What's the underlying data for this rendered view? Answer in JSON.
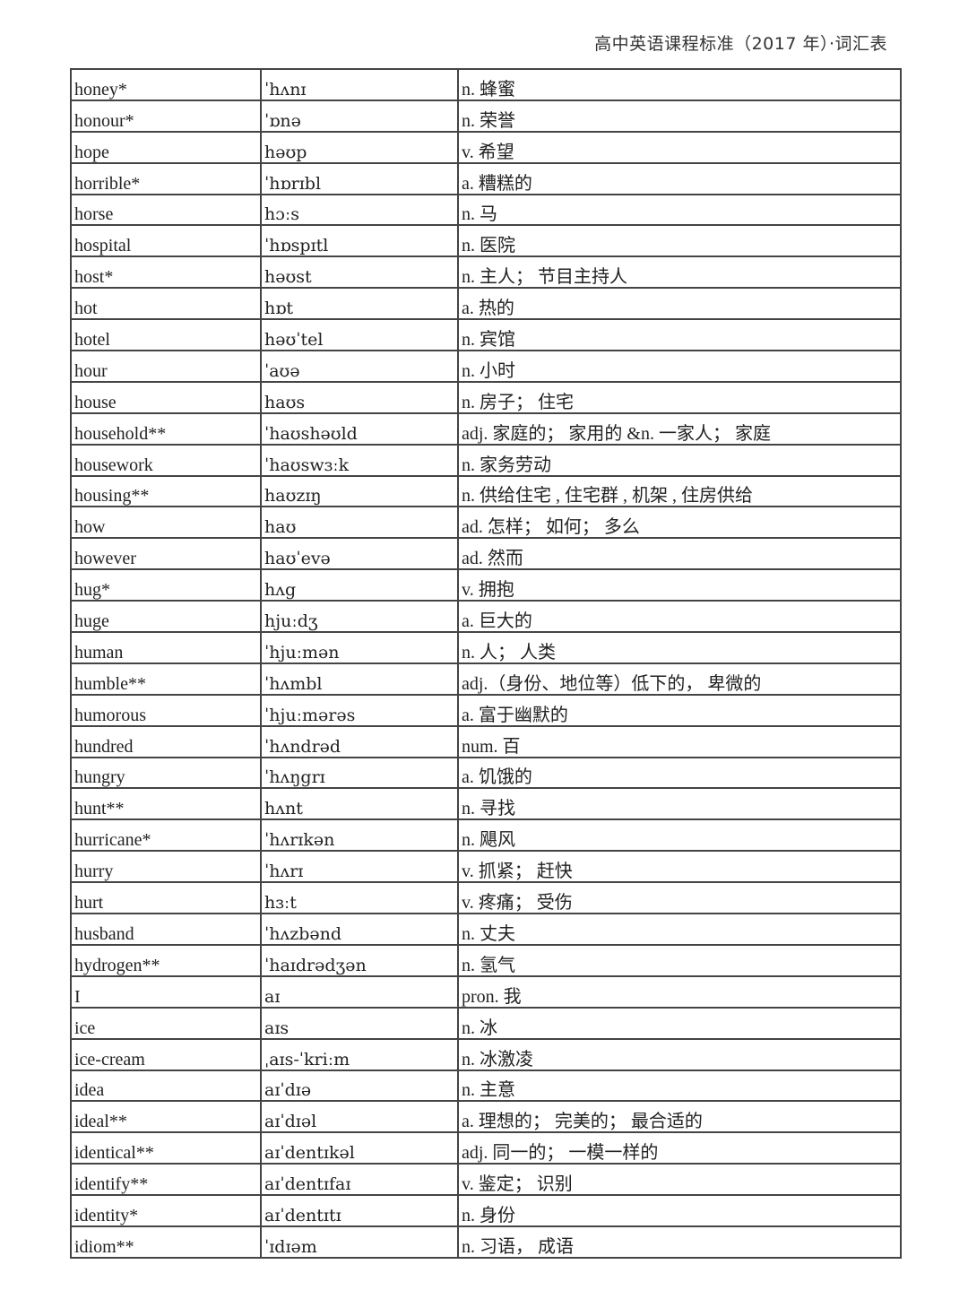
{
  "header": {
    "title": "高中英语课程标准（2017 年）·词汇表"
  },
  "rows": [
    {
      "word": "honey*",
      "phonetic": "ˈhʌnɪ",
      "meaning": "n. 蜂蜜"
    },
    {
      "word": "honour*",
      "phonetic": "ˈɒnə",
      "meaning": "n. 荣誉"
    },
    {
      "word": "hope",
      "phonetic": "həʊp",
      "meaning": "v. 希望"
    },
    {
      "word": "horrible*",
      "phonetic": "ˈhɒrɪbl",
      "meaning": "a. 糟糕的"
    },
    {
      "word": "horse",
      "phonetic": "hɔːs",
      "meaning": "n. 马"
    },
    {
      "word": "hospital",
      "phonetic": "ˈhɒspɪtl",
      "meaning": "n. 医院"
    },
    {
      "word": "host*",
      "phonetic": "həʊst",
      "meaning": "n. 主人；  节目主持人"
    },
    {
      "word": "hot",
      "phonetic": "hɒt",
      "meaning": "a. 热的"
    },
    {
      "word": "hotel",
      "phonetic": "həʊˈtel",
      "meaning": "n. 宾馆"
    },
    {
      "word": "hour",
      "phonetic": "ˈaʊə",
      "meaning": "n. 小时"
    },
    {
      "word": "house",
      "phonetic": "haʊs",
      "meaning": "n. 房子；  住宅"
    },
    {
      "word": "household**",
      "phonetic": "ˈhaʊshəʊld",
      "meaning": "adj. 家庭的；  家用的 &n. 一家人；  家庭"
    },
    {
      "word": "housework",
      "phonetic": "ˈhaʊswɜːk",
      "meaning": "n. 家务劳动"
    },
    {
      "word": "housing**",
      "phonetic": "haʊzɪŋ",
      "meaning": "n. 供给住宅 , 住宅群 , 机架 , 住房供给"
    },
    {
      "word": "how",
      "phonetic": "haʊ",
      "meaning": "ad. 怎样；  如何；  多么"
    },
    {
      "word": "however",
      "phonetic": "haʊˈevə",
      "meaning": "ad. 然而"
    },
    {
      "word": "hug*",
      "phonetic": "hʌg",
      "meaning": "v. 拥抱"
    },
    {
      "word": "huge",
      "phonetic": "hjuːdʒ",
      "meaning": "a. 巨大的"
    },
    {
      "word": "human",
      "phonetic": "ˈhjuːmən",
      "meaning": "n. 人；  人类"
    },
    {
      "word": "humble**",
      "phonetic": "ˈhʌmbl",
      "meaning": "adj.（身份、地位等）低下的，  卑微的"
    },
    {
      "word": "humorous",
      "phonetic": "ˈhjuːmərəs",
      "meaning": "a. 富于幽默的"
    },
    {
      "word": "hundred",
      "phonetic": "ˈhʌndrəd",
      "meaning": "num. 百"
    },
    {
      "word": "hungry",
      "phonetic": "ˈhʌŋgrɪ",
      "meaning": "a. 饥饿的"
    },
    {
      "word": "hunt**",
      "phonetic": "hʌnt",
      "meaning": "n. 寻找"
    },
    {
      "word": "hurricane*",
      "phonetic": "ˈhʌrɪkən",
      "meaning": "n. 飓风"
    },
    {
      "word": "hurry",
      "phonetic": "ˈhʌrɪ",
      "meaning": "v. 抓紧；  赶快"
    },
    {
      "word": "hurt",
      "phonetic": "hɜːt",
      "meaning": "v. 疼痛；  受伤"
    },
    {
      "word": "husband",
      "phonetic": "ˈhʌzbənd",
      "meaning": "n. 丈夫"
    },
    {
      "word": "hydrogen**",
      "phonetic": "ˈhaɪdrədʒən",
      "meaning": "n. 氢气"
    },
    {
      "word": "I",
      "phonetic": "aɪ",
      "meaning": "pron. 我"
    },
    {
      "word": "ice",
      "phonetic": "aɪs",
      "meaning": "n. 冰"
    },
    {
      "word": "ice-cream",
      "phonetic": "ˌaɪs-ˈkriːm",
      "meaning": "n. 冰激凌"
    },
    {
      "word": "idea",
      "phonetic": "aɪˈdɪə",
      "meaning": "n. 主意"
    },
    {
      "word": "ideal**",
      "phonetic": "aɪˈdɪəl",
      "meaning": "a. 理想的；  完美的；  最合适的"
    },
    {
      "word": "identical**",
      "phonetic": "aɪˈdentɪkəl",
      "meaning": "adj. 同一的；  一模一样的"
    },
    {
      "word": "identify**",
      "phonetic": "aɪˈdentɪfaɪ",
      "meaning": "v. 鉴定；  识别"
    },
    {
      "word": "identity*",
      "phonetic": "aɪˈdentɪtɪ",
      "meaning": "n. 身份"
    },
    {
      "word": "idiom**",
      "phonetic": "ˈɪdɪəm",
      "meaning": "n. 习语，  成语"
    }
  ]
}
